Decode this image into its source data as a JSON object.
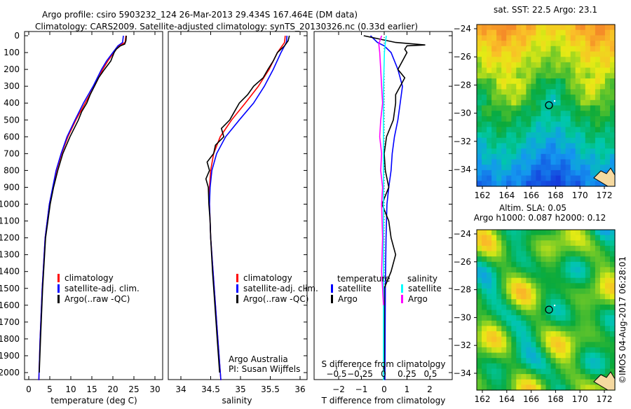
{
  "title_line1": "Argo profile: csiro 5903232_124 26-Mar-2013 29.434S 167.464E (DM data)",
  "title_line2": "Climatology: CARS2009. Satellite-adjusted climatology: synTS_20130326.nc (0.33d earlier)",
  "credit": "©IMOS 04-Aug-2017 06:28:01",
  "colors": {
    "climatology": "#ff0000",
    "satellite": "#0000ff",
    "argo": "#000000",
    "sal_satellite": "#00ffff",
    "sal_argo": "#ff00ff"
  },
  "chart_data": [
    {
      "type": "line",
      "panel": "temperature",
      "xlabel": "temperature (deg C)",
      "xlim": [
        -2,
        32
      ],
      "ylim": [
        2045,
        -25
      ],
      "xticks": [
        0,
        5,
        10,
        15,
        20,
        25,
        30
      ],
      "yticks": [
        0,
        100,
        200,
        300,
        400,
        500,
        600,
        700,
        800,
        900,
        1000,
        1100,
        1200,
        1300,
        1400,
        1500,
        1600,
        1700,
        1800,
        1900,
        2000
      ],
      "legend": [
        "climatology",
        "satellite-adj. clim.",
        "Argo(..raw -QC)"
      ],
      "series": [
        {
          "name": "climatology",
          "color": "#ff0000",
          "depth": [
            0,
            40,
            60,
            100,
            150,
            200,
            300,
            400,
            500,
            600,
            700,
            800,
            1000,
            1200,
            1500,
            1800,
            2045
          ],
          "values": [
            23.1,
            22.9,
            21.5,
            20.2,
            18.8,
            17.6,
            15.6,
            13.4,
            11.2,
            9.3,
            7.8,
            6.6,
            4.9,
            3.9,
            3.2,
            2.7,
            2.4
          ]
        },
        {
          "name": "satellite-adj. clim.",
          "color": "#0000ff",
          "depth": [
            0,
            40,
            60,
            100,
            150,
            200,
            300,
            400,
            500,
            600,
            700,
            800,
            1000,
            1200,
            1500,
            1800,
            2045
          ],
          "values": [
            22.5,
            22.3,
            21.2,
            20.0,
            18.5,
            17.3,
            15.3,
            13.0,
            11.0,
            9.1,
            7.7,
            6.5,
            4.9,
            3.9,
            3.2,
            2.7,
            2.4
          ]
        },
        {
          "name": "Argo(..raw -QC)",
          "color": "#000000",
          "depth": [
            0,
            30,
            50,
            60,
            80,
            100,
            150,
            200,
            250,
            300,
            350,
            400,
            450,
            500,
            600,
            700,
            800,
            900,
            1000,
            1200,
            1500,
            1800,
            2000
          ],
          "values": [
            23.2,
            23.1,
            22.8,
            21.8,
            20.8,
            20.3,
            19.5,
            18.0,
            16.6,
            15.6,
            14.6,
            13.8,
            12.6,
            11.8,
            9.8,
            8.1,
            6.9,
            5.9,
            5.1,
            4.0,
            3.3,
            2.8,
            2.5
          ]
        }
      ]
    },
    {
      "type": "line",
      "panel": "salinity",
      "xlabel": "salinity",
      "xlim": [
        33.7,
        36.1
      ],
      "ylim": [
        2045,
        -25
      ],
      "xticks": [
        34,
        34.5,
        35,
        35.5,
        36
      ],
      "legend": [
        "climatology",
        "satellite-adj. clim.",
        "Argo(..raw -QC)"
      ],
      "annotation": [
        "Argo Australia",
        "PI: Susan Wijffels"
      ],
      "series": [
        {
          "name": "climatology",
          "color": "#ff0000",
          "depth": [
            0,
            40,
            100,
            200,
            300,
            400,
            500,
            600,
            700,
            800,
            900,
            1000,
            1200,
            1500,
            1800,
            2045
          ],
          "values": [
            35.75,
            35.74,
            35.62,
            35.48,
            35.3,
            35.08,
            34.85,
            34.66,
            34.55,
            34.5,
            34.48,
            34.48,
            34.5,
            34.56,
            34.62,
            34.67
          ]
        },
        {
          "name": "satellite-adj. clim.",
          "color": "#0000ff",
          "depth": [
            0,
            40,
            100,
            200,
            300,
            400,
            500,
            600,
            700,
            800,
            900,
            1000,
            1200,
            1500,
            1800,
            2045
          ],
          "values": [
            35.78,
            35.77,
            35.68,
            35.55,
            35.4,
            35.22,
            34.98,
            34.75,
            34.6,
            34.52,
            34.49,
            34.48,
            34.5,
            34.56,
            34.62,
            34.67
          ]
        },
        {
          "name": "Argo(..raw -QC)",
          "color": "#000000",
          "depth": [
            0,
            30,
            60,
            100,
            150,
            200,
            250,
            300,
            350,
            400,
            450,
            500,
            550,
            600,
            650,
            700,
            750,
            800,
            850,
            900,
            1000,
            1100,
            1200,
            1400,
            1600,
            1800,
            2000
          ],
          "values": [
            35.82,
            35.8,
            35.74,
            35.62,
            35.55,
            35.46,
            35.38,
            35.22,
            35.12,
            34.98,
            34.9,
            34.82,
            34.68,
            34.72,
            34.58,
            34.55,
            34.44,
            34.48,
            34.42,
            34.46,
            34.47,
            34.49,
            34.5,
            34.53,
            34.57,
            34.61,
            34.65
          ]
        }
      ]
    },
    {
      "type": "line",
      "panel": "differences",
      "xlabel": "T difference from climatology",
      "xlabel2": "S difference from climatology",
      "xlim": [
        -2.9,
        3.1
      ],
      "xticks": [
        -2,
        -1,
        0,
        1,
        2
      ],
      "xlim2": [
        -0.5,
        0.5
      ],
      "xticks2": [
        -0.5,
        -0.25,
        0,
        0.25,
        0.5
      ],
      "legend_temperature": {
        "title": "temperature",
        "items": [
          "satellite",
          "Argo"
        ]
      },
      "legend_salinity": {
        "title": "salinity",
        "items": [
          "satellite",
          "Argo"
        ]
      },
      "series": [
        {
          "name": "temperature satellite",
          "color": "#0000ff",
          "axis": "T",
          "depth": [
            0,
            40,
            60,
            100,
            200,
            300,
            400,
            500,
            600,
            700,
            800,
            900,
            1000,
            1200,
            1500,
            2045
          ],
          "values": [
            -0.6,
            -0.3,
            0.0,
            0.3,
            0.6,
            0.8,
            0.7,
            0.6,
            0.45,
            0.35,
            0.3,
            0.2,
            0.12,
            0.08,
            0.05,
            0.03
          ]
        },
        {
          "name": "temperature Argo",
          "color": "#000000",
          "axis": "T",
          "depth": [
            0,
            40,
            55,
            60,
            80,
            100,
            150,
            200,
            250,
            300,
            350,
            400,
            500,
            600,
            700,
            800,
            900,
            1000,
            1100,
            1200,
            1300,
            1400,
            1500,
            1600,
            2000
          ],
          "values": [
            -0.9,
            0.5,
            1.8,
            1.0,
            0.9,
            1.0,
            0.8,
            0.6,
            0.9,
            0.7,
            0.5,
            0.5,
            0.4,
            0.1,
            0.0,
            0.05,
            0.2,
            -0.1,
            0.2,
            0.3,
            0.5,
            0.3,
            0.0,
            0.0,
            0.0
          ]
        },
        {
          "name": "salinity satellite",
          "color": "#00ffff",
          "axis": "S",
          "depth": [
            0,
            40,
            100,
            300,
            600,
            1000,
            1500,
            2045
          ],
          "values": [
            0.03,
            0.02,
            0.01,
            0.0,
            0.0,
            0.0,
            0.0,
            0.0
          ]
        },
        {
          "name": "salinity Argo",
          "color": "#ff00ff",
          "axis": "S",
          "depth": [
            0,
            50,
            100,
            200,
            300,
            400,
            500,
            600,
            700,
            800,
            900,
            1000,
            1200,
            1400,
            1500,
            1600
          ],
          "values": [
            -0.02,
            -0.05,
            -0.04,
            -0.03,
            -0.02,
            -0.01,
            -0.03,
            -0.04,
            -0.02,
            -0.03,
            -0.01,
            -0.02,
            -0.01,
            -0.02,
            -0.01,
            0.0
          ]
        }
      ]
    },
    {
      "type": "heatmap",
      "panel": "sst_map",
      "title": "sat. SST: 22.5 Argo: 23.1",
      "xticks": [
        162,
        164,
        166,
        168,
        170,
        172
      ],
      "yticks": [
        -24,
        -26,
        -28,
        -30,
        -32,
        -34
      ],
      "xlim": [
        161.5,
        173.5
      ],
      "ylim": [
        -35.3,
        -23.5
      ],
      "argo_position": {
        "lon": 167.464,
        "lat": -29.434
      }
    },
    {
      "type": "heatmap",
      "panel": "sla_map",
      "title": "Altim. SLA: 0.05",
      "subtitle": "Argo h1000: 0.087 h2000: 0.12",
      "xticks": [
        162,
        164,
        166,
        168,
        170,
        172
      ],
      "yticks": [
        -24,
        -26,
        -28,
        -30,
        -32,
        -34
      ],
      "xlim": [
        161.5,
        173.5
      ],
      "ylim": [
        -35.3,
        -23.5
      ],
      "argo_position": {
        "lon": 167.464,
        "lat": -29.434
      }
    }
  ]
}
